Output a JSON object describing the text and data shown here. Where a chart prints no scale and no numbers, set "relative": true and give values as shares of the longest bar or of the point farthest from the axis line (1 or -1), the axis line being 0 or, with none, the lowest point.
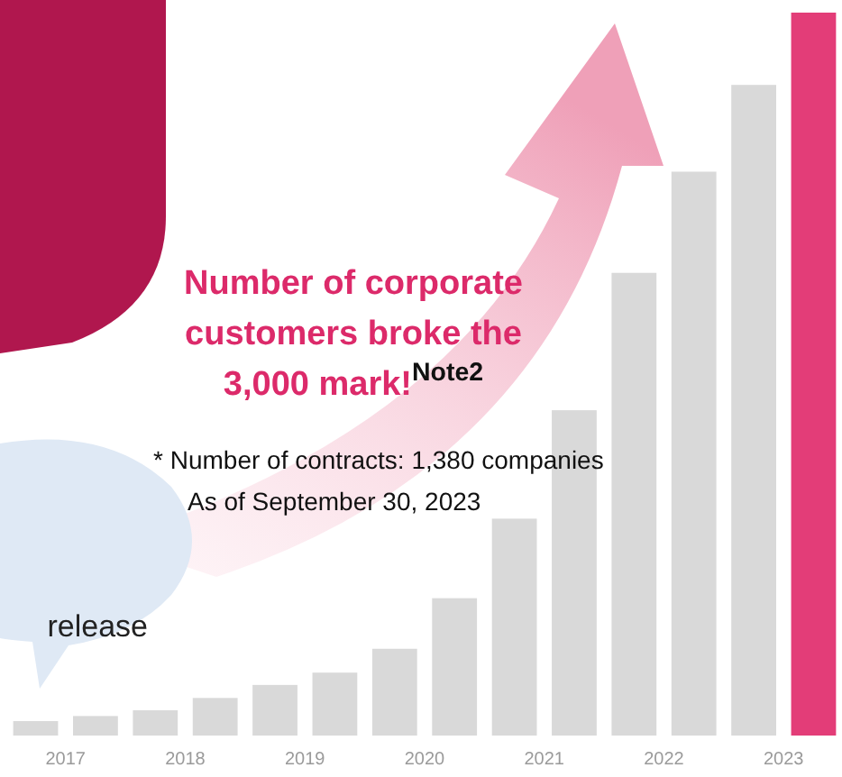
{
  "chart_data": {
    "type": "bar",
    "relative": true,
    "categories": [
      "2017",
      null,
      "2018",
      null,
      "2019",
      null,
      "2020",
      null,
      "2021",
      null,
      "2022",
      null,
      "2023",
      null
    ],
    "values": [
      0.02,
      0.027,
      0.035,
      0.052,
      0.07,
      0.087,
      0.12,
      0.19,
      0.3,
      0.45,
      0.64,
      0.78,
      0.9,
      1
    ],
    "colors": [
      "#d9d9d9",
      "#d9d9d9",
      "#d9d9d9",
      "#d9d9d9",
      "#d9d9d9",
      "#d9d9d9",
      "#d9d9d9",
      "#d9d9d9",
      "#d9d9d9",
      "#d9d9d9",
      "#d9d9d9",
      "#d9d9d9",
      "#d9d9d9",
      "#e33d78"
    ],
    "annotations": [
      "Number of corporate customers broke the 3,000 mark!$^{Note2}$",
      "* Number of contracts: 1,380 companies",
      "As of September 30, 2023",
      "release"
    ]
  }
}
